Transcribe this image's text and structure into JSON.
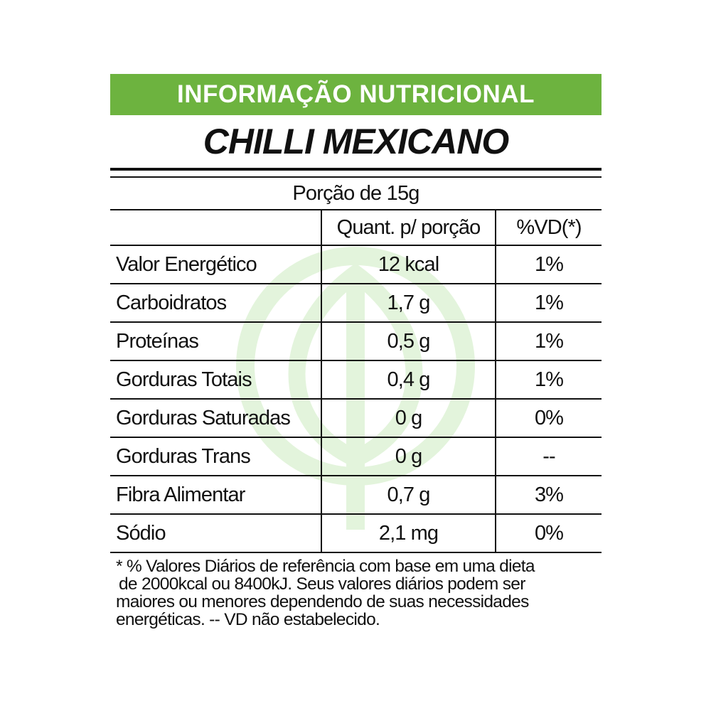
{
  "banner": {
    "title": "INFORMAÇÃO NUTRICIONAL",
    "color": "#6db33f"
  },
  "product": {
    "name": "CHILLI MEXICANO"
  },
  "portion": "Porção de 15g",
  "table": {
    "headers": [
      "",
      "Quant. p/ porção",
      "%VD(*)"
    ],
    "rows": [
      {
        "nutrient": "Valor Energético",
        "amount": "12 kcal",
        "dv": "1%"
      },
      {
        "nutrient": "Carboidratos",
        "amount": "1,7 g",
        "dv": "1%"
      },
      {
        "nutrient": "Proteínas",
        "amount": "0,5 g",
        "dv": "1%"
      },
      {
        "nutrient": "Gorduras Totais",
        "amount": "0,4 g",
        "dv": "1%"
      },
      {
        "nutrient": "Gorduras Saturadas",
        "amount": "0 g",
        "dv": "0%"
      },
      {
        "nutrient": "Gorduras Trans",
        "amount": "0 g",
        "dv": "--"
      },
      {
        "nutrient": "Fibra Alimentar",
        "amount": "0,7 g",
        "dv": "3%"
      },
      {
        "nutrient": "Sódio",
        "amount": "2,1 mg",
        "dv": "0%"
      }
    ]
  },
  "footnote": [
    "* % Valores Diários de referência com base em uma dieta",
    "de 2000kcal  ou 8400kJ. Seus valores diários podem ser",
    "maiores ou menores dependendo de suas necessidades",
    "energéticas.  -- VD não estabelecido."
  ],
  "watermark": {
    "icon": "leaf-in-circle-icon",
    "color": "#e3f4dc"
  }
}
